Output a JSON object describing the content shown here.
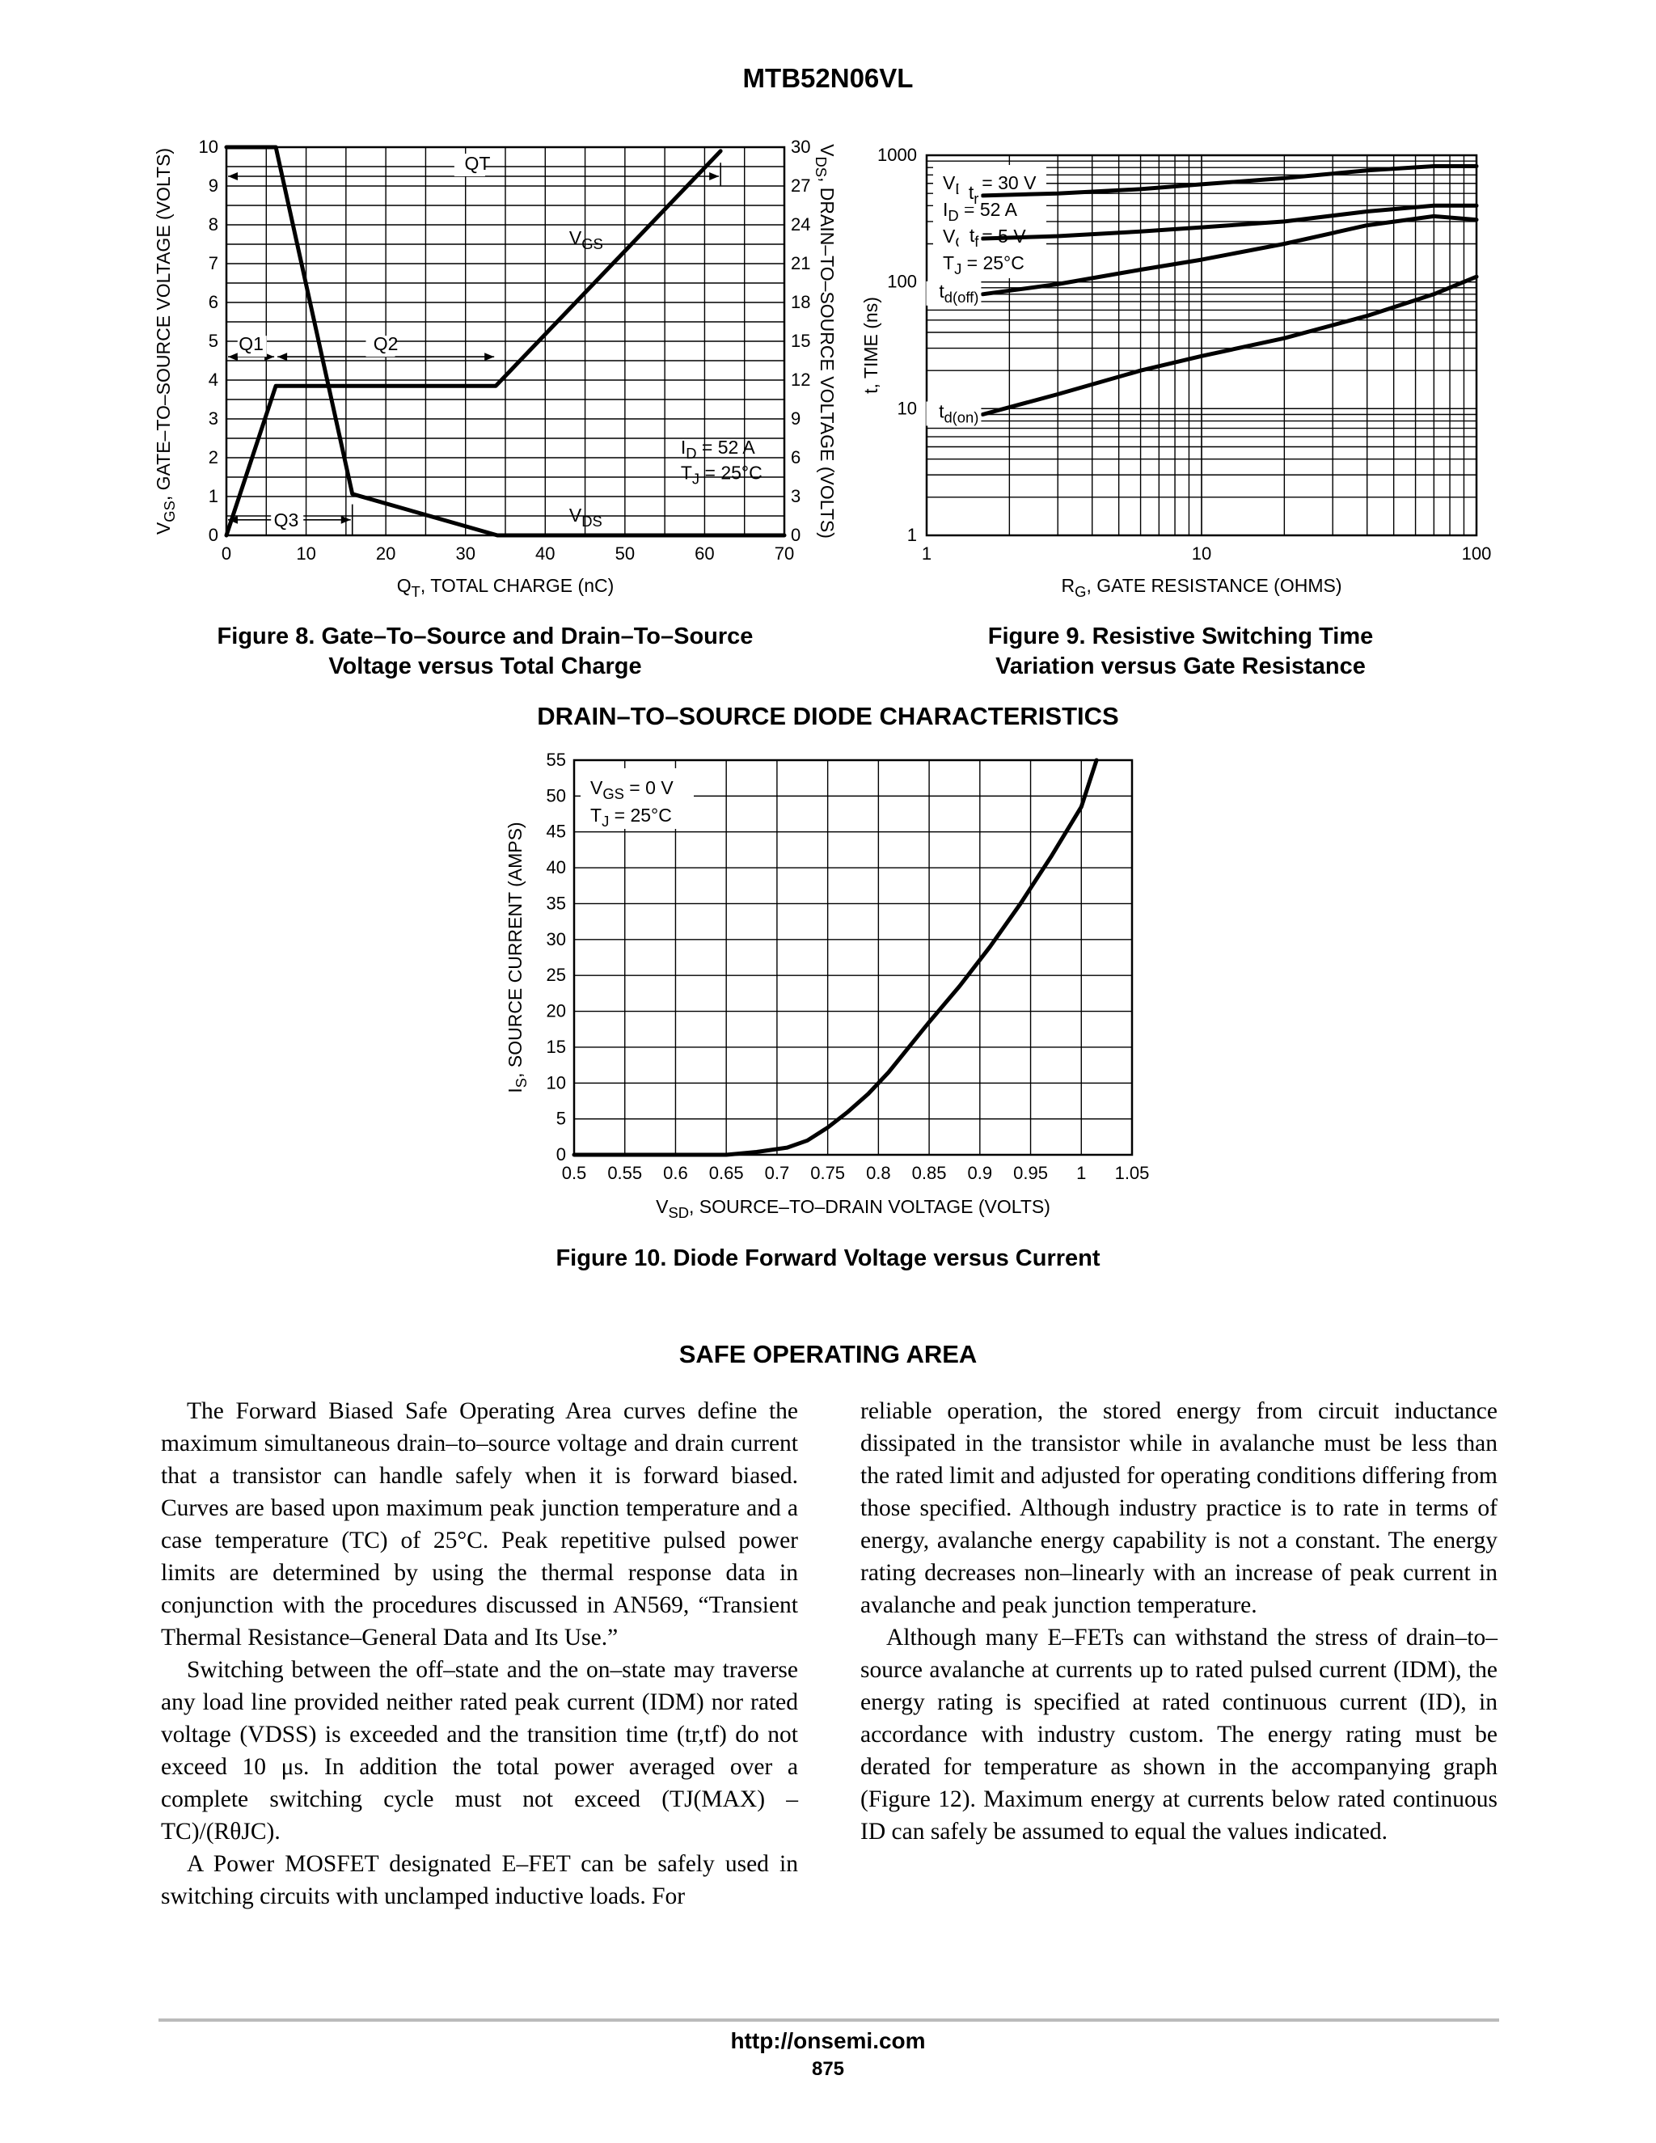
{
  "header": {
    "part_number": "MTB52N06VL"
  },
  "figures": [
    {
      "caption_line1": "Figure 8. Gate–To–Source and Drain–To–Source",
      "caption_line2": "Voltage versus Total Charge"
    },
    {
      "caption_line1": "Figure 9. Resistive Switching Time",
      "caption_line2": "Variation versus Gate Resistance"
    },
    {
      "caption_line1": "Figure 10. Diode Forward Voltage versus Current",
      "caption_line2": ""
    }
  ],
  "chart_data": [
    {
      "type": "line",
      "xlabel": "QT, TOTAL CHARGE (nC)",
      "ylabel_left": "VGS, GATE–TO–SOURCE VOLTAGE (VOLTS)",
      "ylabel_right": "VDS, DRAIN–TO–SOURCE VOLTAGE (VOLTS)",
      "xlim": [
        0,
        70
      ],
      "ylim_left": [
        0,
        10
      ],
      "ylim_right": [
        0,
        30
      ],
      "x_ticks": [
        "0",
        "10",
        "20",
        "30",
        "40",
        "50",
        "60",
        "70"
      ],
      "y_ticks_left": [
        "0",
        "1",
        "2",
        "3",
        "4",
        "5",
        "6",
        "7",
        "8",
        "9",
        "10"
      ],
      "y_ticks_right": [
        "0",
        "3",
        "6",
        "9",
        "12",
        "15",
        "18",
        "21",
        "24",
        "27",
        "30"
      ],
      "annotations": [
        "QT",
        "Q1",
        "Q2",
        "Q3",
        "ID = 52 A",
        "TJ = 25°C"
      ],
      "series": [
        {
          "name": "VGS",
          "x": [
            0,
            6.2,
            33.8,
            62
          ],
          "y": [
            0,
            3.85,
            3.85,
            9.9
          ]
        },
        {
          "name": "VDS",
          "x": [
            0,
            6.2,
            15.8,
            34,
            70
          ],
          "y": [
            30,
            30,
            3.2,
            0,
            0
          ]
        }
      ],
      "grid": true
    },
    {
      "type": "line",
      "xlabel": "RG, GATE RESISTANCE (OHMS)",
      "ylabel": "t, TIME (ns)",
      "xscale": "log",
      "yscale": "log",
      "xlim": [
        1,
        100
      ],
      "ylim": [
        1,
        1000
      ],
      "x_ticks": [
        "1",
        "10",
        "100"
      ],
      "y_ticks": [
        "1",
        "10",
        "100",
        "1000"
      ],
      "conditions": [
        "VDD = 30 V",
        "ID = 52 A",
        "VGS = 5 V",
        "TJ = 25°C"
      ],
      "series": [
        {
          "name": "tr",
          "x": [
            1.6,
            3,
            6,
            10,
            20,
            40,
            70,
            100
          ],
          "y": [
            480,
            500,
            540,
            590,
            660,
            760,
            820,
            820
          ]
        },
        {
          "name": "tf",
          "x": [
            1.6,
            3,
            6,
            10,
            20,
            40,
            70,
            100
          ],
          "y": [
            220,
            230,
            250,
            270,
            300,
            360,
            400,
            400
          ]
        },
        {
          "name": "td(off)",
          "x": [
            1.6,
            3,
            6,
            10,
            20,
            40,
            70,
            100
          ],
          "y": [
            80,
            96,
            125,
            150,
            200,
            280,
            330,
            310
          ]
        },
        {
          "name": "td(on)",
          "x": [
            1.6,
            3,
            6,
            10,
            20,
            40,
            70,
            100
          ],
          "y": [
            9,
            13,
            20,
            26,
            36,
            54,
            80,
            110
          ]
        }
      ],
      "grid": true
    },
    {
      "type": "line",
      "title": "DRAIN–TO–SOURCE DIODE CHARACTERISTICS",
      "xlabel": "VSD, SOURCE–TO–DRAIN VOLTAGE (VOLTS)",
      "ylabel": "IS, SOURCE CURRENT (AMPS)",
      "xlim": [
        0.5,
        1.05
      ],
      "ylim": [
        0,
        55
      ],
      "x_ticks": [
        "0.5",
        "0.55",
        "0.6",
        "0.65",
        "0.7",
        "0.75",
        "0.8",
        "0.85",
        "0.9",
        "0.95",
        "1",
        "1.05"
      ],
      "y_ticks": [
        "0",
        "5",
        "10",
        "15",
        "20",
        "25",
        "30",
        "35",
        "40",
        "45",
        "50",
        "55"
      ],
      "conditions": [
        "VGS = 0 V",
        "TJ = 25°C"
      ],
      "series": [
        {
          "name": "IS",
          "x": [
            0.5,
            0.65,
            0.68,
            0.71,
            0.73,
            0.75,
            0.77,
            0.79,
            0.81,
            0.83,
            0.85,
            0.88,
            0.91,
            0.94,
            0.97,
            1.0,
            1.015
          ],
          "y": [
            0,
            0,
            0.4,
            1,
            2,
            3.8,
            6,
            8.5,
            11.5,
            15,
            18.5,
            23.5,
            29,
            35,
            41.5,
            48.5,
            55
          ]
        }
      ],
      "grid": true
    }
  ],
  "sections": {
    "soa_title": "SAFE OPERATING AREA"
  },
  "body": {
    "left": [
      "The Forward Biased Safe Operating Area curves define the maximum simultaneous drain–to–source voltage and drain current that a transistor can handle safely when it is forward biased. Curves are based upon maximum peak junction temperature and a case temperature (TC) of 25°C. Peak repetitive pulsed power limits are determined by using the thermal response data in conjunction with the procedures discussed in AN569, “Transient Thermal Resistance–General Data and Its Use.”",
      "Switching between the off–state and the on–state may traverse any load line provided neither rated peak current (IDM) nor rated voltage (VDSS) is exceeded and the transition time (tr,tf) do not exceed 10 μs. In addition the total power averaged over a complete switching cycle must not exceed (TJ(MAX) – TC)/(RθJC).",
      "A Power MOSFET designated E–FET can be safely used in switching circuits with unclamped inductive loads. For"
    ],
    "right": [
      "reliable operation, the stored energy from circuit inductance dissipated in the transistor while in avalanche must be less than the rated limit and adjusted for operating conditions differing from those specified. Although industry practice is to rate in terms of energy, avalanche energy capability is not a constant. The energy rating decreases non–linearly with an increase of peak current in avalanche and peak junction temperature.",
      "Although many E–FETs can withstand the stress of drain–to–source avalanche at currents up to rated pulsed current (IDM), the energy rating is specified at rated continuous current (ID), in accordance with industry custom. The energy rating must be derated for temperature as shown in the accompanying graph (Figure 12). Maximum energy at currents below rated continuous ID can safely be assumed to equal the values indicated."
    ]
  },
  "footer": {
    "url": "http://onsemi.com",
    "page": "875"
  }
}
